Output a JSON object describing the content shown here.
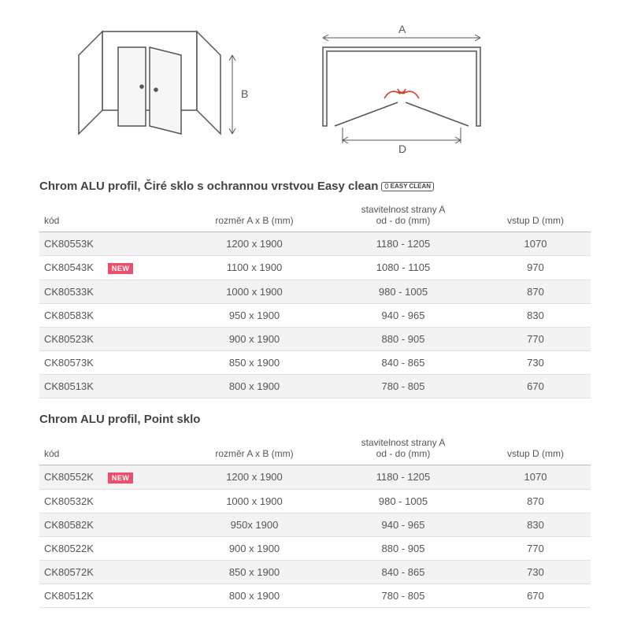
{
  "diagram": {
    "label_A": "A",
    "label_B": "B",
    "label_D": "D",
    "stroke": "#555555",
    "fill_panel": "#f2f2f2",
    "arrow_red": "#d83a2b"
  },
  "sections": [
    {
      "title": "Chrom ALU profil, Čiré sklo s ochrannou vrstvou Easy clean",
      "easy_badge": "⬯ EASY CLEAN",
      "headers": [
        "kód",
        "rozměr A x B  (mm)",
        "stavitelnost strany A\nod - do (mm)",
        "vstup D (mm)"
      ],
      "new_label": "NEW",
      "rows": [
        {
          "kod": "CK80553K",
          "new": false,
          "dim": "1200 x 1900",
          "adj": "1180 - 1205",
          "d": "1070"
        },
        {
          "kod": "CK80543K",
          "new": true,
          "dim": "1100 x 1900",
          "adj": "1080 - 1105",
          "d": "970"
        },
        {
          "kod": "CK80533K",
          "new": false,
          "dim": "1000 x 1900",
          "adj": "980 - 1005",
          "d": "870"
        },
        {
          "kod": "CK80583K",
          "new": false,
          "dim": "950 x 1900",
          "adj": "940 - 965",
          "d": "830"
        },
        {
          "kod": "CK80523K",
          "new": false,
          "dim": "900 x 1900",
          "adj": "880 - 905",
          "d": "770"
        },
        {
          "kod": "CK80573K",
          "new": false,
          "dim": "850 x 1900",
          "adj": "840 - 865",
          "d": "730"
        },
        {
          "kod": "CK80513K",
          "new": false,
          "dim": "800 x 1900",
          "adj": "780 - 805",
          "d": "670"
        }
      ]
    },
    {
      "title": "Chrom ALU profil, Point sklo",
      "headers": [
        "kód",
        "rozměr A x B  (mm)",
        "stavitelnost strany A\nod - do (mm)",
        "vstup D (mm)"
      ],
      "new_label": "NEW",
      "rows": [
        {
          "kod": "CK80552K",
          "new": true,
          "dim": "1200 x 1900",
          "adj": "1180 - 1205",
          "d": "1070"
        },
        {
          "kod": "CK80532K",
          "new": false,
          "dim": "1000 x 1900",
          "adj": "980 - 1005",
          "d": "870"
        },
        {
          "kod": "CK80582K",
          "new": false,
          "dim": "950x 1900",
          "adj": "940 - 965",
          "d": "830"
        },
        {
          "kod": "CK80522K",
          "new": false,
          "dim": "900 x 1900",
          "adj": "880 - 905",
          "d": "770"
        },
        {
          "kod": "CK80572K",
          "new": false,
          "dim": "850 x 1900",
          "adj": "840 - 865",
          "d": "730"
        },
        {
          "kod": "CK80512K",
          "new": false,
          "dim": "800 x 1900",
          "adj": "780 - 805",
          "d": "670"
        }
      ]
    }
  ]
}
